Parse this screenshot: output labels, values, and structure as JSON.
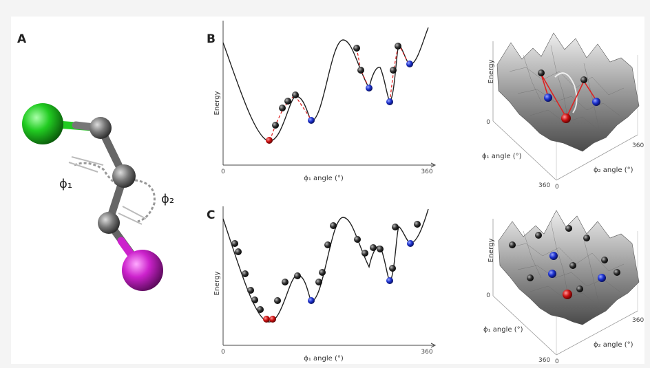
{
  "panels": {
    "a": {
      "letter": "A",
      "phi1": "ϕ₁",
      "phi2": "ϕ₂"
    },
    "b": {
      "letter": "B"
    },
    "c": {
      "letter": "C"
    }
  },
  "axis_2d": {
    "ylabel": "Energy",
    "xlabel": "ϕ₁ angle (°)",
    "x_min_label": "0",
    "x_max_label": "360"
  },
  "axis_3d": {
    "zlabel": "Energy",
    "x_label": "ϕ₁ angle (°)",
    "y_label": "ϕ₂ angle (°)",
    "origin_z": "0",
    "x_max_label": "360",
    "y_origin_label": "0",
    "y_max_label": "360"
  },
  "colors": {
    "chlorine": "#22cc22",
    "iodine": "#cc22cc",
    "carbon": "#777777",
    "global_min": "#cc1111",
    "local_min": "#1a2fcc",
    "walker": "#222222",
    "path": "#dd2222"
  }
}
